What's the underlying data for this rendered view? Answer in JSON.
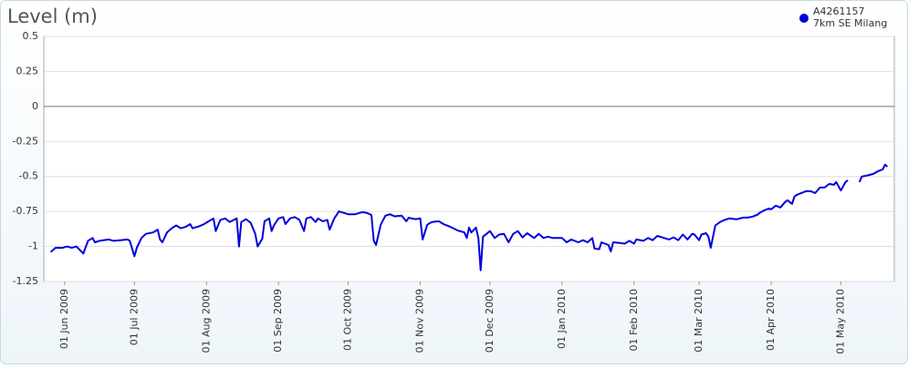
{
  "chart_data": {
    "type": "line",
    "title": "Level (m)",
    "series": [
      {
        "name": "A4261157",
        "location": "7km SE Milang",
        "color": "#0000dd",
        "x": [
          "2009-05-26",
          "2009-05-28",
          "2009-05-31",
          "2009-06-02",
          "2009-06-04",
          "2009-06-06",
          "2009-06-09",
          "2009-06-11",
          "2009-06-13",
          "2009-06-14",
          "2009-06-16",
          "2009-06-20",
          "2009-06-22",
          "2009-06-25",
          "2009-06-28",
          "2009-06-29",
          "2009-07-01",
          "2009-07-02",
          "2009-07-04",
          "2009-07-06",
          "2009-07-09",
          "2009-07-11",
          "2009-07-12",
          "2009-07-13",
          "2009-07-15",
          "2009-07-17",
          "2009-07-19",
          "2009-07-21",
          "2009-07-23",
          "2009-07-25",
          "2009-07-26",
          "2009-07-29",
          "2009-07-31",
          "2009-08-01",
          "2009-08-04",
          "2009-08-05",
          "2009-08-07",
          "2009-08-09",
          "2009-08-11",
          "2009-08-14",
          "2009-08-15",
          "2009-08-16",
          "2009-08-18",
          "2009-08-20",
          "2009-08-22",
          "2009-08-23",
          "2009-08-25",
          "2009-08-26",
          "2009-08-28",
          "2009-08-29",
          "2009-08-30",
          "2009-09-01",
          "2009-09-03",
          "2009-09-04",
          "2009-09-06",
          "2009-09-08",
          "2009-09-10",
          "2009-09-12",
          "2009-09-13",
          "2009-09-15",
          "2009-09-17",
          "2009-09-18",
          "2009-09-20",
          "2009-09-22",
          "2009-09-23",
          "2009-09-25",
          "2009-09-27",
          "2009-10-01",
          "2009-10-04",
          "2009-10-07",
          "2009-10-09",
          "2009-10-11",
          "2009-10-12",
          "2009-10-13",
          "2009-10-15",
          "2009-10-17",
          "2009-10-19",
          "2009-10-21",
          "2009-10-24",
          "2009-10-26",
          "2009-10-27",
          "2009-10-30",
          "2009-11-01",
          "2009-11-02",
          "2009-11-04",
          "2009-11-06",
          "2009-11-09",
          "2009-11-11",
          "2009-11-14",
          "2009-11-17",
          "2009-11-20",
          "2009-11-21",
          "2009-11-22",
          "2009-11-23",
          "2009-11-25",
          "2009-11-26",
          "2009-11-27",
          "2009-11-28",
          "2009-12-01",
          "2009-12-03",
          "2009-12-05",
          "2009-12-07",
          "2009-12-08",
          "2009-12-09",
          "2009-12-11",
          "2009-12-13",
          "2009-12-15",
          "2009-12-17",
          "2009-12-20",
          "2009-12-22",
          "2009-12-24",
          "2009-12-26",
          "2009-12-28",
          "2010-01-01",
          "2010-01-03",
          "2010-01-05",
          "2010-01-08",
          "2010-01-10",
          "2010-01-12",
          "2010-01-14",
          "2010-01-15",
          "2010-01-17",
          "2010-01-18",
          "2010-01-21",
          "2010-01-22",
          "2010-01-23",
          "2010-01-26",
          "2010-01-28",
          "2010-01-30",
          "2010-02-01",
          "2010-02-02",
          "2010-02-05",
          "2010-02-07",
          "2010-02-09",
          "2010-02-11",
          "2010-02-13",
          "2010-02-16",
          "2010-02-18",
          "2010-02-20",
          "2010-02-22",
          "2010-02-24",
          "2010-02-26",
          "2010-02-27",
          "2010-03-01",
          "2010-03-02",
          "2010-03-04",
          "2010-03-05",
          "2010-03-06",
          "2010-03-08",
          "2010-03-10",
          "2010-03-12",
          "2010-03-14",
          "2010-03-17",
          "2010-03-20",
          "2010-03-22",
          "2010-03-24",
          "2010-03-26",
          "2010-03-27",
          "2010-03-29",
          "2010-03-31",
          "2010-04-01",
          "2010-04-03",
          "2010-04-05",
          "2010-04-07",
          "2010-04-08",
          "2010-04-10",
          "2010-04-11",
          "2010-04-12",
          "2010-04-14",
          "2010-04-16",
          "2010-04-18",
          "2010-04-20",
          "2010-04-22",
          "2010-04-24",
          "2010-04-26",
          "2010-04-28",
          "2010-04-29",
          "2010-05-01",
          "2010-05-03",
          "2010-05-04",
          "2010-05-07",
          "2010-05-09",
          "2010-05-10",
          "2010-05-12",
          "2010-05-15",
          "2010-05-17",
          "2010-05-19",
          "2010-05-20",
          "2010-05-21"
        ],
        "values": [
          -1.04,
          -1.01,
          -1.01,
          -1.0,
          -1.01,
          -1.0,
          -1.05,
          -0.96,
          -0.94,
          -0.97,
          -0.96,
          -0.95,
          -0.96,
          -0.955,
          -0.95,
          -0.96,
          -1.07,
          -1.01,
          -0.94,
          -0.91,
          -0.9,
          -0.88,
          -0.95,
          -0.97,
          -0.9,
          -0.87,
          -0.85,
          -0.87,
          -0.86,
          -0.84,
          -0.87,
          -0.855,
          -0.84,
          -0.83,
          -0.8,
          -0.89,
          -0.81,
          -0.8,
          -0.825,
          -0.8,
          -1.0,
          -0.825,
          -0.805,
          -0.83,
          -0.91,
          -1.0,
          -0.945,
          -0.82,
          -0.8,
          -0.89,
          -0.85,
          -0.8,
          -0.79,
          -0.84,
          -0.8,
          -0.79,
          -0.81,
          -0.89,
          -0.8,
          -0.79,
          -0.825,
          -0.8,
          -0.82,
          -0.81,
          -0.88,
          -0.8,
          -0.75,
          -0.77,
          -0.77,
          -0.755,
          -0.76,
          -0.775,
          -0.96,
          -0.99,
          -0.845,
          -0.78,
          -0.77,
          -0.785,
          -0.78,
          -0.82,
          -0.795,
          -0.805,
          -0.8,
          -0.95,
          -0.845,
          -0.825,
          -0.82,
          -0.84,
          -0.86,
          -0.885,
          -0.9,
          -0.94,
          -0.865,
          -0.9,
          -0.865,
          -0.94,
          -1.17,
          -0.93,
          -0.89,
          -0.94,
          -0.915,
          -0.91,
          -0.94,
          -0.97,
          -0.91,
          -0.89,
          -0.935,
          -0.905,
          -0.94,
          -0.91,
          -0.94,
          -0.93,
          -0.94,
          -0.94,
          -0.97,
          -0.95,
          -0.97,
          -0.955,
          -0.97,
          -0.94,
          -1.015,
          -1.02,
          -0.97,
          -0.99,
          -1.035,
          -0.97,
          -0.975,
          -0.98,
          -0.96,
          -0.98,
          -0.95,
          -0.96,
          -0.94,
          -0.955,
          -0.925,
          -0.935,
          -0.95,
          -0.935,
          -0.955,
          -0.915,
          -0.95,
          -0.91,
          -0.915,
          -0.955,
          -0.915,
          -0.905,
          -0.93,
          -1.01,
          -0.85,
          -0.826,
          -0.81,
          -0.8,
          -0.806,
          -0.794,
          -0.794,
          -0.787,
          -0.774,
          -0.761,
          -0.742,
          -0.729,
          -0.735,
          -0.709,
          -0.722,
          -0.683,
          -0.67,
          -0.696,
          -0.644,
          -0.631,
          -0.618,
          -0.605,
          -0.605,
          -0.618,
          -0.579,
          -0.579,
          -0.553,
          -0.56,
          -0.54,
          -0.6,
          -0.54,
          -0.527,
          null,
          -0.54,
          -0.501,
          -0.495,
          -0.482,
          -0.462,
          -0.449,
          -0.416,
          -0.43
        ]
      }
    ],
    "xlim": [
      "2009-05-23",
      "2010-05-24"
    ],
    "xticks": [
      {
        "value": "2009-06-01",
        "label": "01 Jun 2009"
      },
      {
        "value": "2009-07-01",
        "label": "01 Jul 2009"
      },
      {
        "value": "2009-08-01",
        "label": "01 Aug 2009"
      },
      {
        "value": "2009-09-01",
        "label": "01 Sep 2009"
      },
      {
        "value": "2009-10-01",
        "label": "01 Oct 2009"
      },
      {
        "value": "2009-11-01",
        "label": "01 Nov 2009"
      },
      {
        "value": "2009-12-01",
        "label": "01 Dec 2009"
      },
      {
        "value": "2010-01-01",
        "label": "01 Jan 2010"
      },
      {
        "value": "2010-02-01",
        "label": "01 Feb 2010"
      },
      {
        "value": "2010-03-01",
        "label": "01 Mar 2010"
      },
      {
        "value": "2010-04-01",
        "label": "01 Apr 2010"
      },
      {
        "value": "2010-05-01",
        "label": "01 May 2010"
      }
    ],
    "ylim": [
      -1.25,
      0.5
    ],
    "yticks": [
      0.5,
      0.25,
      0,
      -0.25,
      -0.5,
      -0.75,
      -1,
      -1.25
    ],
    "grid": true
  }
}
